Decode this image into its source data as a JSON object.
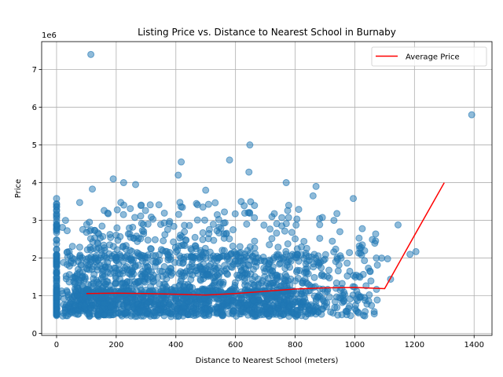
{
  "chart_data": {
    "type": "scatter",
    "title": "Listing Price vs. Distance to Nearest School in Burnaby",
    "xlabel": "Distance to Nearest School (meters)",
    "ylabel": "Price",
    "y_offset_label": "1e6",
    "xlim": [
      -50,
      1460
    ],
    "ylim": [
      -50000,
      7740000
    ],
    "x_ticks": [
      0,
      200,
      400,
      600,
      800,
      1000,
      1200,
      1400
    ],
    "y_ticks": [
      0,
      1000000,
      2000000,
      3000000,
      4000000,
      5000000,
      6000000,
      7000000
    ],
    "y_tick_labels": [
      "0",
      "1",
      "2",
      "3",
      "4",
      "5",
      "6",
      "7"
    ],
    "grid": true,
    "legend_position": "top-right",
    "scatter_color": "#1f77b4",
    "average_color": "#ff0000",
    "series": [
      {
        "type": "line",
        "name": "Average Price",
        "x": [
          100,
          200,
          300,
          400,
          500,
          600,
          700,
          800,
          900,
          1000,
          1100,
          1200,
          1300
        ],
        "y": [
          1060000,
          1070000,
          1060000,
          1040000,
          1020000,
          1060000,
          1120000,
          1180000,
          1210000,
          1220000,
          1190000,
          2600000,
          4000000
        ]
      },
      {
        "type": "scatter",
        "outliers": [
          {
            "x": 115,
            "y": 7400000
          },
          {
            "x": 1392,
            "y": 5800000
          },
          {
            "x": 648,
            "y": 5000000
          },
          {
            "x": 580,
            "y": 4600000
          },
          {
            "x": 418,
            "y": 4550000
          },
          {
            "x": 408,
            "y": 4200000
          },
          {
            "x": 645,
            "y": 4280000
          },
          {
            "x": 190,
            "y": 4100000
          },
          {
            "x": 225,
            "y": 4000000
          },
          {
            "x": 770,
            "y": 4000000
          },
          {
            "x": 870,
            "y": 3900000
          },
          {
            "x": 120,
            "y": 3830000
          },
          {
            "x": 265,
            "y": 3950000
          },
          {
            "x": 500,
            "y": 3800000
          },
          {
            "x": 0,
            "y": 3580000
          },
          {
            "x": 0,
            "y": 3420000
          },
          {
            "x": 995,
            "y": 3580000
          },
          {
            "x": 1145,
            "y": 2880000
          },
          {
            "x": 1205,
            "y": 2170000
          },
          {
            "x": 1185,
            "y": 2100000
          },
          {
            "x": 1120,
            "y": 1440000
          },
          {
            "x": 1110,
            "y": 1980000
          },
          {
            "x": 1070,
            "y": 2640000
          },
          {
            "x": 1090,
            "y": 2000000
          },
          {
            "x": 1065,
            "y": 580000
          },
          {
            "x": 30,
            "y": 3000000
          },
          {
            "x": 0,
            "y": 2900000
          },
          {
            "x": 940,
            "y": 3180000
          },
          {
            "x": 930,
            "y": 3000000
          },
          {
            "x": 860,
            "y": 3650000
          },
          {
            "x": 950,
            "y": 2700000
          },
          {
            "x": 1025,
            "y": 2780000
          },
          {
            "x": 40,
            "y": 730000
          },
          {
            "x": 0,
            "y": 620000
          }
        ],
        "bulk_description": "dense cloud between x 0-1100, y 0.3M-3.5M"
      }
    ]
  }
}
